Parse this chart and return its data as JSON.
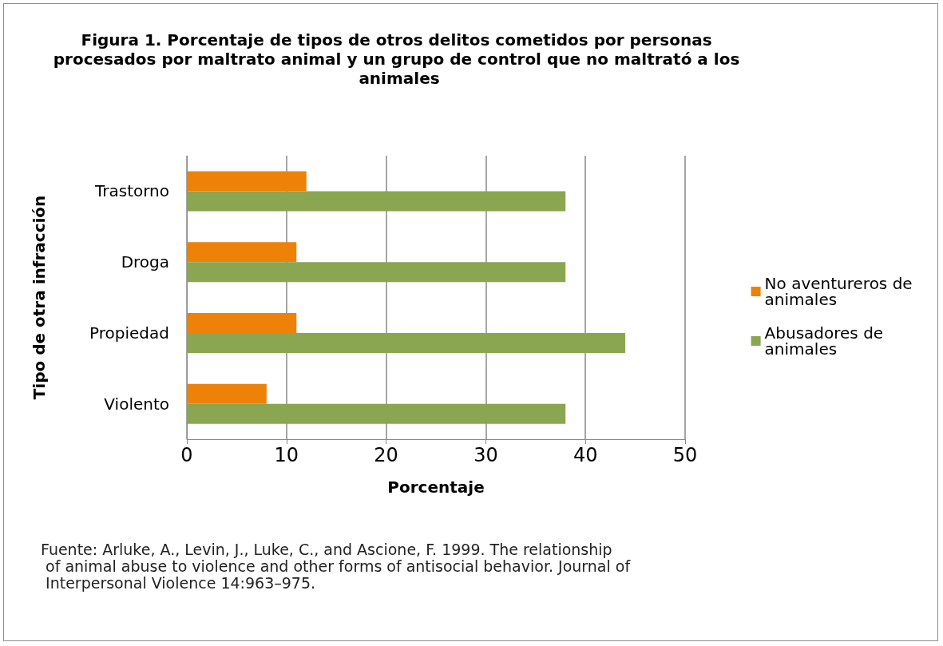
{
  "chart_data": {
    "type": "bar",
    "orientation": "horizontal",
    "title": "Figura 1. Porcentaje de tipos de otros delitos cometidos por personas procesados por maltrato animal y un grupo de control que no maltrató a los animales",
    "xlabel": "Porcentaje",
    "ylabel": "Tipo de otra infracción",
    "categories": [
      "Trastorno",
      "Droga",
      "Propiedad",
      "Violento"
    ],
    "series": [
      {
        "name": "No aventureros de animales",
        "color": "#ee8208",
        "values": [
          12,
          11,
          11,
          8
        ]
      },
      {
        "name": "Abusadores de animales",
        "color": "#8aa650",
        "values": [
          38,
          38,
          44,
          38
        ]
      }
    ],
    "xlim": [
      0,
      50
    ],
    "xticks": [
      0,
      10,
      20,
      30,
      40,
      50
    ],
    "grid": "x",
    "legend": "right",
    "annotations": [
      "Fuente: Arluke, A., Levin, J., Luke, C., and Ascione, F. 1999. The relationship of animal abuse to violence and other forms of antisocial behavior. Journal of Interpersonal Violence 14:963–975."
    ]
  }
}
